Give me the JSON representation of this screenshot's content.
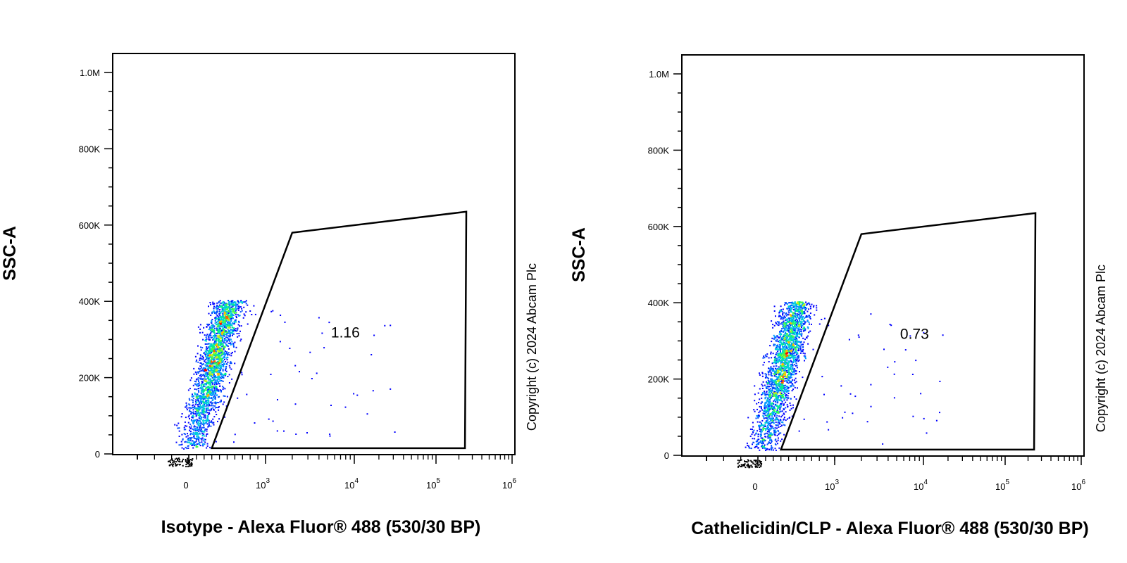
{
  "chart_data": [
    {
      "type": "scatter",
      "xlabel": "Isotype - Alexa Fluor® 488 (530/30 BP)",
      "ylabel": "SSC-A",
      "x_scale": "biexponential",
      "x_tick_labels": [
        "0",
        "10^3",
        "10^4",
        "10^5",
        "10^6"
      ],
      "y_tick_labels": [
        "0",
        "200K",
        "400K",
        "600K",
        "800K",
        "1.0M"
      ],
      "ylim": [
        0,
        1050000
      ],
      "grid": false,
      "gate": {
        "percentage": "1.16",
        "vertices": [
          [
            300,
            15000
          ],
          [
            2000,
            580000
          ],
          [
            250000,
            635000
          ],
          [
            240000,
            15000
          ]
        ]
      },
      "population": {
        "x_center": 150,
        "y_center": 150000,
        "y_range": [
          15000,
          430000
        ],
        "description_colors": [
          "#0000ff",
          "#00ccff",
          "#00ff66",
          "#ffee00",
          "#ff0000"
        ]
      },
      "copyright": "Copyright (c) 2024 Abcam Plc"
    },
    {
      "type": "scatter",
      "xlabel": "Cathelicidin/CLP - Alexa Fluor® 488 (530/30 BP)",
      "ylabel": "SSC-A",
      "x_scale": "biexponential",
      "x_tick_labels": [
        "0",
        "10^3",
        "10^4",
        "10^5",
        "10^6"
      ],
      "y_tick_labels": [
        "0",
        "200K",
        "400K",
        "600K",
        "800K",
        "1.0M"
      ],
      "ylim": [
        0,
        1050000
      ],
      "grid": false,
      "gate": {
        "percentage": "0.73",
        "vertices": [
          [
            300,
            15000
          ],
          [
            2000,
            580000
          ],
          [
            250000,
            635000
          ],
          [
            240000,
            15000
          ]
        ]
      },
      "population": {
        "x_center": 150,
        "y_center": 150000,
        "y_range": [
          15000,
          430000
        ],
        "description_colors": [
          "#0000ff",
          "#00ccff",
          "#00ff66",
          "#ffee00",
          "#ff0000"
        ]
      },
      "copyright": "Copyright (c) 2024 Abcam Plc"
    }
  ]
}
